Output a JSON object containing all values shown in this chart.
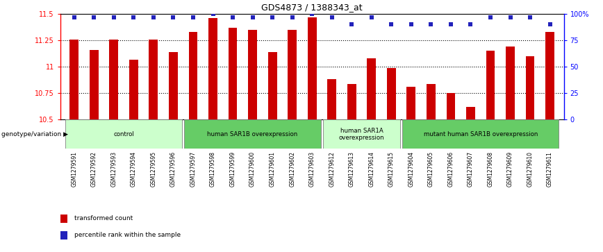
{
  "title": "GDS4873 / 1388343_at",
  "samples": [
    "GSM1279591",
    "GSM1279592",
    "GSM1279593",
    "GSM1279594",
    "GSM1279595",
    "GSM1279596",
    "GSM1279597",
    "GSM1279598",
    "GSM1279599",
    "GSM1279600",
    "GSM1279601",
    "GSM1279602",
    "GSM1279603",
    "GSM1279612",
    "GSM1279613",
    "GSM1279614",
    "GSM1279615",
    "GSM1279604",
    "GSM1279605",
    "GSM1279606",
    "GSM1279607",
    "GSM1279608",
    "GSM1279609",
    "GSM1279610",
    "GSM1279611"
  ],
  "bar_values": [
    11.26,
    11.16,
    11.26,
    11.07,
    11.26,
    11.14,
    11.33,
    11.46,
    11.37,
    11.35,
    11.14,
    11.35,
    11.47,
    10.88,
    10.84,
    11.08,
    10.99,
    10.81,
    10.84,
    10.75,
    10.62,
    11.15,
    11.19,
    11.1,
    11.33
  ],
  "percentile_values": [
    97,
    97,
    97,
    97,
    97,
    97,
    97,
    100,
    97,
    97,
    97,
    97,
    100,
    97,
    90,
    97,
    90,
    90,
    90,
    90,
    90,
    97,
    97,
    97,
    90
  ],
  "bar_color": "#cc0000",
  "dot_color": "#2222bb",
  "ymin": 10.5,
  "ymax": 11.5,
  "yticks_left": [
    10.5,
    10.75,
    11.0,
    11.25,
    11.5
  ],
  "ytick_labels_left": [
    "10.5",
    "10.75",
    "11",
    "11.25",
    "11.5"
  ],
  "right_ytick_pcts": [
    0,
    25,
    50,
    75,
    100
  ],
  "right_ytick_labels": [
    "0",
    "25",
    "50",
    "75",
    "100%"
  ],
  "hlines": [
    10.75,
    11.0,
    11.25
  ],
  "groups": [
    {
      "label": "control",
      "start": 0,
      "end": 6,
      "color": "#ccffcc"
    },
    {
      "label": "human SAR1B overexpression",
      "start": 6,
      "end": 13,
      "color": "#66cc66"
    },
    {
      "label": "human SAR1A\noverexpression",
      "start": 13,
      "end": 17,
      "color": "#ccffcc"
    },
    {
      "label": "mutant human SAR1B overexpression",
      "start": 17,
      "end": 25,
      "color": "#66cc66"
    }
  ],
  "genotype_label": "genotype/variation ▶",
  "legend_items": [
    {
      "label": "transformed count",
      "color": "#cc0000"
    },
    {
      "label": "percentile rank within the sample",
      "color": "#2222bb"
    }
  ],
  "xtick_bg_color": "#cccccc",
  "bar_width": 0.45
}
